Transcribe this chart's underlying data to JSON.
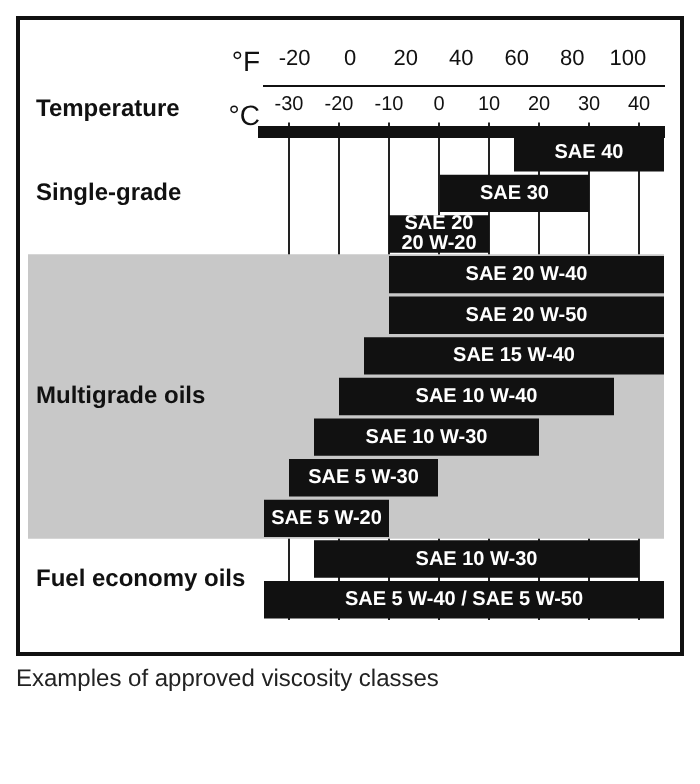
{
  "chart_data": {
    "type": "bar",
    "orientation": "horizontal",
    "categories": [
      "SAE 40",
      "SAE 30",
      "SAE 20\n20 W-20",
      "SAE 20 W-40",
      "SAE 20 W-50",
      "SAE 15 W-40",
      "SAE 10 W-40",
      "SAE 10 W-30",
      "SAE 5 W-30",
      "SAE 5 W-20",
      "SAE 10 W-30",
      "SAE 5 W-40 / SAE 5 W-50"
    ],
    "base": [
      15,
      0,
      -10,
      -10,
      -10,
      -15,
      -20,
      -25,
      -30,
      -35,
      -25,
      -35
    ],
    "values": [
      30,
      30,
      20,
      55,
      55,
      60,
      55,
      45,
      30,
      25,
      65,
      80
    ],
    "color": "#111111",
    "xlim": [
      -35,
      45
    ],
    "xticks": [
      -30,
      -20,
      -10,
      0,
      10,
      20,
      30,
      40
    ],
    "xlabel": "°C",
    "x2lim": [
      -31,
      113
    ],
    "x2ticks": [
      -20,
      0,
      20,
      40,
      60,
      80,
      100
    ],
    "x2label": "°F",
    "grid": "x",
    "bands": [
      {
        "axis": "y",
        "from": "SAE 20 W-40",
        "to": "SAE 5 W-20",
        "label": "Multigrade oils",
        "color": "#c8c8c8"
      }
    ],
    "annotations": [
      "Temperature",
      "Single-grade",
      "Fuel economy oils",
      "Examples of approved viscosity classes"
    ]
  }
}
